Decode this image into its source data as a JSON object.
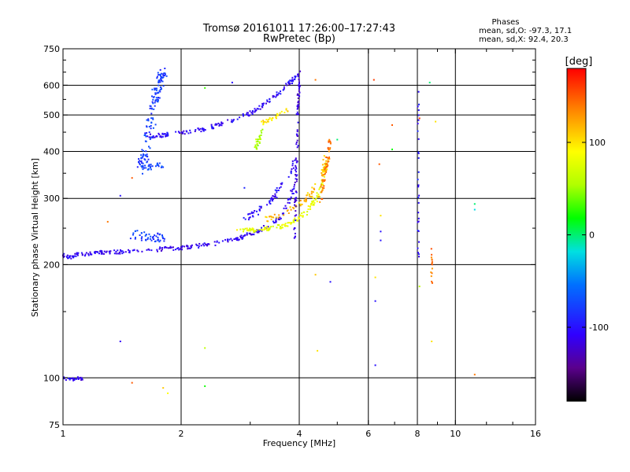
{
  "chart_data": {
    "type": "scatter",
    "title": "Tromsø 20161011 17:26:00–17:27:43",
    "subtitle": "RwPretec (Bp)",
    "xlabel": "Frequency [MHz]",
    "ylabel": "Stationary phase Virtual Height [km]",
    "x_scale": "log",
    "y_scale": "log",
    "xlim": [
      1,
      16
    ],
    "ylim": [
      75,
      750
    ],
    "xticks": [
      1,
      2,
      4,
      6,
      8,
      10,
      16
    ],
    "yticks": [
      75,
      100,
      200,
      300,
      400,
      500,
      600,
      750
    ],
    "x_gridlines": [
      2,
      4,
      6,
      8,
      10
    ],
    "y_gridlines": [
      100,
      200,
      300,
      400,
      500,
      600
    ],
    "grid": true,
    "stats": {
      "title": "Phases",
      "line_o": "mean, sd,O: -97.3, 17.1",
      "line_x": "mean, sd,X:  92.4, 20.3"
    },
    "colorbar": {
      "label": "[deg]",
      "range": [
        -180,
        180
      ],
      "ticks": [
        -100,
        0,
        100
      ]
    },
    "traces": [
      {
        "x": [
          1.0,
          1.02,
          1.05,
          1.08,
          1.12,
          1.18,
          1.25,
          1.3,
          1.4,
          1.5,
          1.6,
          1.7,
          1.8,
          1.9,
          2.0,
          2.1,
          2.2,
          2.4,
          2.6,
          2.8,
          2.9,
          3.0,
          3.1,
          3.2,
          3.35,
          3.5,
          3.65,
          3.8,
          3.95
        ],
        "y": [
          212,
          210,
          210,
          212,
          213,
          214,
          215,
          216,
          216,
          217,
          218,
          219,
          220,
          221,
          222,
          223,
          224,
          227,
          231,
          235,
          238,
          241,
          244,
          248,
          254,
          262,
          275,
          300,
          350
        ],
        "phase": -110,
        "n": 260,
        "jx": 0.012,
        "jy": 0.012
      },
      {
        "x": [
          1.6,
          1.7,
          1.8,
          1.9,
          2.0,
          2.2,
          2.4,
          2.6,
          2.8,
          3.0,
          3.2,
          3.4,
          3.6,
          3.8,
          3.95
        ],
        "y": [
          440,
          440,
          442,
          445,
          448,
          455,
          465,
          478,
          490,
          505,
          525,
          550,
          580,
          610,
          640
        ],
        "phase": -105,
        "n": 170,
        "jx": 0.01,
        "jy": 0.012
      },
      {
        "x": [
          2.9,
          3.1,
          3.3,
          3.5,
          3.7,
          3.9
        ],
        "y": [
          265,
          275,
          290,
          310,
          340,
          380
        ],
        "phase": -105,
        "n": 60,
        "jx": 0.012,
        "jy": 0.02
      },
      {
        "x": [
          2.8,
          3.0,
          3.2,
          3.4,
          3.6,
          3.8,
          4.0,
          4.2,
          4.4,
          4.6,
          4.7
        ],
        "y": [
          246,
          247,
          248,
          250,
          253,
          258,
          266,
          278,
          298,
          330,
          380
        ],
        "phase": 80,
        "n": 140,
        "jx": 0.012,
        "jy": 0.012
      },
      {
        "x": [
          3.3,
          3.6,
          3.9,
          4.2,
          4.4,
          4.6,
          4.7
        ],
        "y": [
          262,
          272,
          285,
          300,
          320,
          350,
          390
        ],
        "phase": 115,
        "n": 80,
        "jx": 0.015,
        "jy": 0.02
      },
      {
        "x": [
          4.5,
          4.6,
          4.7,
          4.75,
          4.78
        ],
        "y": [
          290,
          330,
          370,
          400,
          425
        ],
        "phase": 140,
        "n": 50,
        "jx": 0.01,
        "jy": 0.02
      },
      {
        "x": [
          3.2,
          3.4,
          3.6,
          3.8
        ],
        "y": [
          475,
          490,
          505,
          520
        ],
        "phase": 100,
        "n": 30,
        "jx": 0.01,
        "jy": 0.01
      },
      {
        "x": [
          3.1,
          3.15,
          3.2
        ],
        "y": [
          410,
          430,
          455
        ],
        "phase": 55,
        "n": 25,
        "jx": 0.012,
        "jy": 0.03
      },
      {
        "x": [
          1.5,
          1.62,
          1.72,
          1.8
        ],
        "y": [
          240,
          238,
          236,
          234
        ],
        "phase": -80,
        "n": 50,
        "jx": 0.02,
        "jy": 0.03
      },
      {
        "x": [
          1.58,
          1.62,
          1.66,
          1.7,
          1.74,
          1.78,
          1.8
        ],
        "y": [
          360,
          400,
          460,
          520,
          580,
          620,
          650
        ],
        "phase": -80,
        "n": 140,
        "jx": 0.025,
        "jy": 0.045
      },
      {
        "x": [
          1.6,
          1.7,
          1.8
        ],
        "y": [
          360,
          365,
          370
        ],
        "phase": -70,
        "n": 25,
        "jx": 0.02,
        "jy": 0.015
      },
      {
        "x": [
          3.9,
          3.92,
          3.95,
          3.97,
          4.0
        ],
        "y": [
          240,
          320,
          420,
          530,
          630
        ],
        "phase": -115,
        "n": 90,
        "jx": 0.006,
        "jy": 0.06
      },
      {
        "x": [
          1.0,
          1.03,
          1.07,
          1.1,
          1.13
        ],
        "y": [
          100,
          99,
          99,
          100,
          99
        ],
        "phase": -110,
        "n": 30,
        "jx": 0.008,
        "jy": 0.008
      },
      {
        "x": [
          8.05,
          8.05,
          8.05,
          8.05
        ],
        "y": [
          200,
          300,
          400,
          600
        ],
        "phase": -100,
        "n": 30,
        "jx": 0.004,
        "jy": 0.08
      },
      {
        "x": [
          8.7,
          8.7,
          8.7
        ],
        "y": [
          180,
          200,
          220
        ],
        "phase": 140,
        "n": 15,
        "jx": 0.004,
        "jy": 0.04
      }
    ],
    "points": [
      {
        "x": 1.4,
        "y": 305,
        "phase": -100
      },
      {
        "x": 1.4,
        "y": 125,
        "phase": -110
      },
      {
        "x": 1.5,
        "y": 340,
        "phase": 150
      },
      {
        "x": 1.3,
        "y": 260,
        "phase": 140
      },
      {
        "x": 1.5,
        "y": 97,
        "phase": 150
      },
      {
        "x": 1.8,
        "y": 94,
        "phase": 110
      },
      {
        "x": 1.85,
        "y": 91,
        "phase": 90
      },
      {
        "x": 2.3,
        "y": 120,
        "phase": 60
      },
      {
        "x": 2.3,
        "y": 95,
        "phase": 20
      },
      {
        "x": 2.3,
        "y": 590,
        "phase": 30
      },
      {
        "x": 2.7,
        "y": 610,
        "phase": -100
      },
      {
        "x": 2.9,
        "y": 320,
        "phase": -90
      },
      {
        "x": 4.4,
        "y": 620,
        "phase": 140
      },
      {
        "x": 4.4,
        "y": 188,
        "phase": 110
      },
      {
        "x": 4.45,
        "y": 118,
        "phase": 100
      },
      {
        "x": 4.8,
        "y": 180,
        "phase": -100
      },
      {
        "x": 5.0,
        "y": 430,
        "phase": 0
      },
      {
        "x": 6.2,
        "y": 620,
        "phase": 160
      },
      {
        "x": 6.25,
        "y": 185,
        "phase": 100
      },
      {
        "x": 6.25,
        "y": 160,
        "phase": -100
      },
      {
        "x": 6.25,
        "y": 108,
        "phase": -100
      },
      {
        "x": 6.4,
        "y": 370,
        "phase": 150
      },
      {
        "x": 6.45,
        "y": 270,
        "phase": 100
      },
      {
        "x": 6.45,
        "y": 245,
        "phase": -100
      },
      {
        "x": 6.45,
        "y": 232,
        "phase": -100
      },
      {
        "x": 6.9,
        "y": 470,
        "phase": 150
      },
      {
        "x": 6.9,
        "y": 405,
        "phase": 20
      },
      {
        "x": 8.1,
        "y": 490,
        "phase": 160
      },
      {
        "x": 8.1,
        "y": 175,
        "phase": 60
      },
      {
        "x": 8.6,
        "y": 610,
        "phase": 0
      },
      {
        "x": 8.7,
        "y": 125,
        "phase": 100
      },
      {
        "x": 8.9,
        "y": 480,
        "phase": 100
      },
      {
        "x": 11.2,
        "y": 290,
        "phase": 0
      },
      {
        "x": 11.2,
        "y": 280,
        "phase": -20
      },
      {
        "x": 11.2,
        "y": 102,
        "phase": 140
      }
    ]
  }
}
